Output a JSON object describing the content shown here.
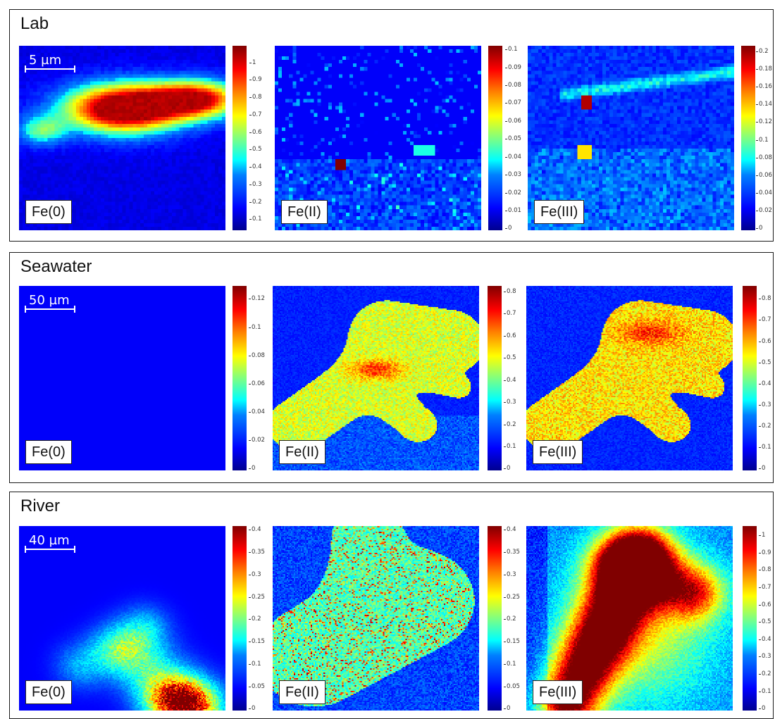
{
  "panels": [
    {
      "title": "Lab",
      "scale_bar": "5 µm",
      "maps": [
        {
          "species": "Fe(0)",
          "colorbar_ticks": [
            "1",
            "0.9",
            "0.8",
            "0.7",
            "0.6",
            "0.5",
            "0.4",
            "0.3",
            "0.2",
            "0.1"
          ]
        },
        {
          "species": "Fe(II)",
          "colorbar_ticks": [
            "0.1",
            "0.09",
            "0.08",
            "0.07",
            "0.06",
            "0.05",
            "0.04",
            "0.03",
            "0.02",
            "0.01",
            "0"
          ]
        },
        {
          "species": "Fe(III)",
          "colorbar_ticks": [
            "0.2",
            "0.18",
            "0.16",
            "0.14",
            "0.12",
            "0.1",
            "0.08",
            "0.06",
            "0.04",
            "0.02",
            "0"
          ]
        }
      ]
    },
    {
      "title": "Seawater",
      "scale_bar": "50 µm",
      "maps": [
        {
          "species": "Fe(0)",
          "colorbar_ticks": [
            "0.12",
            "0.1",
            "0.08",
            "0.06",
            "0.04",
            "0.02",
            "0"
          ]
        },
        {
          "species": "Fe(II)",
          "colorbar_ticks": [
            "0.8",
            "0.7",
            "0.6",
            "0.5",
            "0.4",
            "0.3",
            "0.2",
            "0.1",
            "0"
          ]
        },
        {
          "species": "Fe(III)",
          "colorbar_ticks": [
            "0.8",
            "0.7",
            "0.6",
            "0.5",
            "0.4",
            "0.3",
            "0.2",
            "0.1",
            "0"
          ]
        }
      ]
    },
    {
      "title": "River",
      "scale_bar": "40 µm",
      "maps": [
        {
          "species": "Fe(0)",
          "colorbar_ticks": [
            "0.4",
            "0.35",
            "0.3",
            "0.25",
            "0.2",
            "0.15",
            "0.1",
            "0.05",
            "0"
          ]
        },
        {
          "species": "Fe(II)",
          "colorbar_ticks": [
            "0.4",
            "0.35",
            "0.3",
            "0.25",
            "0.2",
            "0.15",
            "0.1",
            "0.05",
            "0"
          ]
        },
        {
          "species": "Fe(III)",
          "colorbar_ticks": [
            "1",
            "0.9",
            "0.8",
            "0.7",
            "0.6",
            "0.5",
            "0.4",
            "0.3",
            "0.2",
            "0.1",
            "0"
          ]
        }
      ]
    }
  ],
  "colormap": "jet"
}
